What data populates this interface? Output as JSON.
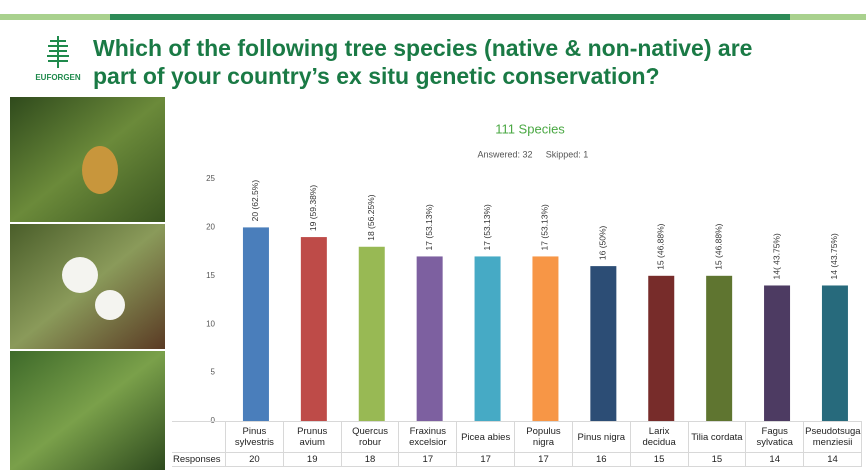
{
  "header": {
    "title": [
      "Which of the following tree species (native & non-native) are",
      "part of your country’s ex situ genetic conservation?"
    ],
    "logo": "EUFORGEN"
  },
  "chart_data": {
    "type": "bar",
    "title": "111 Species",
    "annotations": [
      "Answered: 32",
      "Skipped: 1"
    ],
    "categories": [
      "Pinus sylvestris",
      "Prunus avium",
      "Quercus robur",
      "Fraxinus excelsior",
      "Picea abies",
      "Populus nigra",
      "Pinus nigra",
      "Larix decidua",
      "Tilia cordata",
      "Fagus sylvatica",
      "Pseudotsuga menziesii"
    ],
    "values": [
      20,
      19,
      18,
      17,
      17,
      17,
      16,
      15,
      15,
      14,
      14
    ],
    "value_labels": [
      "20 (62.5%)",
      "19 (59.38%)",
      "18 (56.25%)",
      "17 (53.13%)",
      "17 (53.13%)",
      "17 (53.13%)",
      "16 (50%)",
      "15 (46.88%)",
      "15 (46.88%)",
      "14( 43.75%)",
      "14 (43.75%)"
    ],
    "colors": [
      "#4a7ebb",
      "#be4b48",
      "#98b954",
      "#7d60a0",
      "#46aac5",
      "#f79646",
      "#2c4d75",
      "#772c2a",
      "#5f7530",
      "#4d3b62",
      "#276a7c"
    ],
    "ylim": [
      0,
      25
    ],
    "yticks": [
      0,
      5,
      10,
      15,
      20,
      25
    ],
    "table_label": "Responses"
  }
}
